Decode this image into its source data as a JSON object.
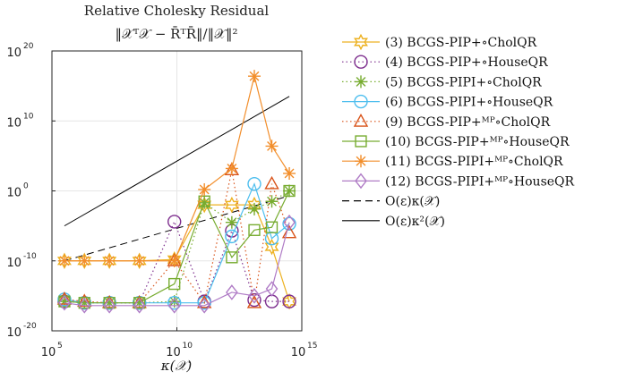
{
  "chart_data": {
    "type": "line",
    "title": "Relative Cholesky Residual",
    "subtitle": "‖𝒳ᵀ𝒳 − R̄ᵀR̄‖/‖𝒳‖²",
    "xlabel": "κ(𝒳)",
    "ylabel": "",
    "x_scale": "log",
    "y_scale": "log",
    "xlim_exp": [
      5,
      15
    ],
    "ylim_exp": [
      -20,
      20
    ],
    "x_ticks": [
      {
        "base": "10",
        "exp": "5"
      },
      {
        "base": "10",
        "exp": "10"
      },
      {
        "base": "10",
        "exp": "15"
      }
    ],
    "y_ticks": [
      {
        "label": "10",
        "exp": "-20"
      },
      {
        "label": "10",
        "exp": "-10"
      },
      {
        "label": "10",
        "exp": "0"
      },
      {
        "label": "10",
        "exp": "10"
      },
      {
        "label": "10",
        "exp": "20"
      }
    ],
    "grid": true,
    "legend_position": "outside-right",
    "x_exp": [
      5.5,
      6.3,
      7.3,
      8.5,
      9.9,
      11.1,
      12.2,
      13.1,
      13.8,
      14.5
    ],
    "series": [
      {
        "name": "(3) BCGS-PIP+∘CholQR",
        "color": "#EDB120",
        "marker": "hexagram",
        "dash": "solid",
        "y_exp": [
          -10.0,
          -10.0,
          -10.0,
          -10.0,
          -9.8,
          -2.0,
          -2.0,
          -2.0,
          -8.0,
          -15.8
        ]
      },
      {
        "name": "(4) BCGS-PIP+∘HouseQR",
        "color": "#7E2F8E",
        "marker": "circle",
        "dash": "dotted",
        "y_exp": [
          -15.8,
          -16.0,
          -16.0,
          -16.0,
          -4.4,
          -15.8,
          -5.7,
          -15.6,
          -15.8,
          -15.8
        ]
      },
      {
        "name": "(5) BCGS-PIPI+∘CholQR",
        "color": "#77AC30",
        "marker": "asterisk",
        "dash": "dotted",
        "y_exp": [
          -15.8,
          -16.0,
          -16.0,
          -16.0,
          -15.8,
          -1.7,
          -4.5,
          -2.6,
          -1.5,
          0.0
        ]
      },
      {
        "name": "(6) BCGS-PIPI+∘HouseQR",
        "color": "#4DBEEE",
        "marker": "circle",
        "dash": "solid",
        "y_exp": [
          -15.5,
          -16.0,
          -16.0,
          -16.0,
          -16.0,
          -16.0,
          -6.5,
          1.0,
          -6.8,
          -4.7
        ]
      },
      {
        "name": "(9) BCGS-PIP+ᴹᴾ∘CholQR",
        "color": "#D95319",
        "marker": "triangle",
        "dash": "dotted",
        "y_exp": [
          -15.5,
          -15.8,
          -16.0,
          -16.0,
          -10.0,
          -16.0,
          3.0,
          -16.0,
          1.0,
          -6.0
        ]
      },
      {
        "name": "(10) BCGS-PIP+ᴹᴾ∘HouseQR",
        "color": "#77AC30",
        "marker": "square",
        "dash": "solid",
        "y_exp": [
          -15.8,
          -16.0,
          -16.0,
          -16.0,
          -13.3,
          -1.5,
          -9.5,
          -5.6,
          -5.2,
          0.0
        ]
      },
      {
        "name": "(11) BCGS-PIPI+ᴹᴾ∘CholQR",
        "color": "#F28E2B",
        "marker": "asterisk",
        "dash": "solid",
        "y_exp": [
          -10.0,
          -10.0,
          -10.0,
          -10.0,
          -10.0,
          0.2,
          3.2,
          16.4,
          6.4,
          2.5
        ]
      },
      {
        "name": "(12) BCGS-PIPI+ᴹᴾ∘HouseQR",
        "color": "#B07CC6",
        "marker": "diamond",
        "dash": "solid",
        "y_exp": [
          -16.0,
          -16.4,
          -16.4,
          -16.4,
          -16.4,
          -16.4,
          -14.5,
          -15.0,
          -14.0,
          -4.5
        ]
      }
    ],
    "reference_lines": [
      {
        "name": "O(ε)κ(𝒳)",
        "color": "#000000",
        "dash": "dashed",
        "x_exp": [
          5.5,
          14.5
        ],
        "y_exp": [
          -10.0,
          -0.7
        ]
      },
      {
        "name": "O(ε)κ²(𝒳)",
        "color": "#000000",
        "dash": "solid",
        "x_exp": [
          5.5,
          14.5
        ],
        "y_exp": [
          -5.0,
          13.5
        ]
      }
    ]
  }
}
